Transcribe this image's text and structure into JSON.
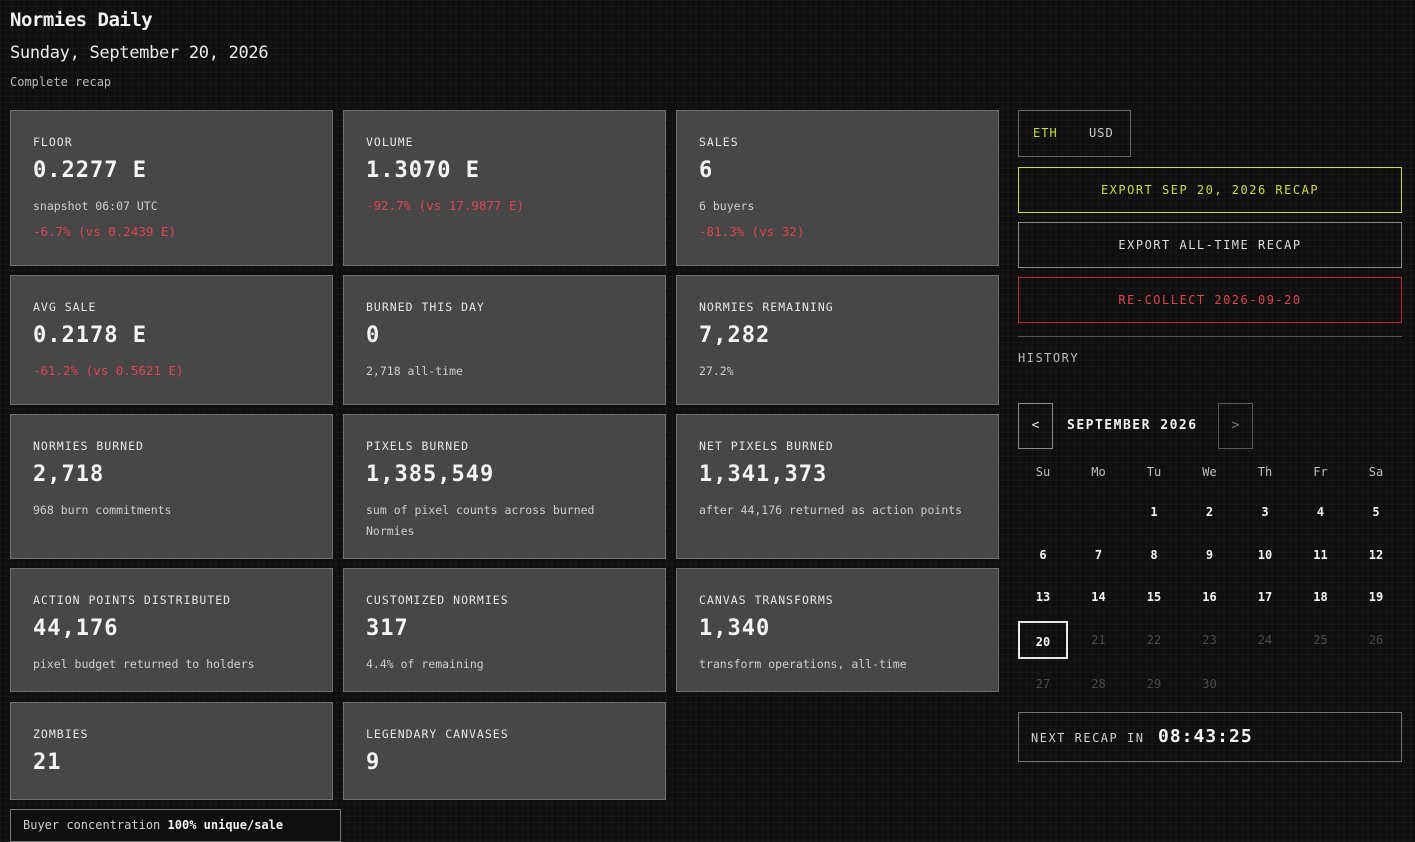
{
  "header": {
    "title": "Normies Daily",
    "date": "Sunday, September 20, 2026",
    "subtitle": "Complete recap"
  },
  "cards": {
    "floor": {
      "label": "FLOOR",
      "value": "0.2277 E",
      "sub": "snapshot 06:07 UTC",
      "delta": "-6.7% (vs 0.2439 E)"
    },
    "volume": {
      "label": "VOLUME",
      "value": "1.3070 E",
      "delta": "-92.7% (vs 17.9877 E)"
    },
    "sales": {
      "label": "SALES",
      "value": "6",
      "sub": "6 buyers",
      "delta": "-81.3% (vs 32)"
    },
    "avg_sale": {
      "label": "AVG SALE",
      "value": "0.2178 E",
      "delta": "-61.2% (vs 0.5621 E)"
    },
    "burned_day": {
      "label": "BURNED THIS DAY",
      "value": "0",
      "sub": "2,718 all-time"
    },
    "remaining": {
      "label": "NORMIES REMAINING",
      "value": "7,282",
      "sub": "27.2%"
    },
    "normies_burned": {
      "label": "NORMIES BURNED",
      "value": "2,718",
      "sub": "968 burn commitments"
    },
    "pixels_burned": {
      "label": "PIXELS BURNED",
      "value": "1,385,549",
      "sub": "sum of pixel counts across burned Normies"
    },
    "net_pixels": {
      "label": "NET PIXELS BURNED",
      "value": "1,341,373",
      "sub": "after 44,176 returned as action points"
    },
    "action_points": {
      "label": "ACTION POINTS DISTRIBUTED",
      "value": "44,176",
      "sub": "pixel budget returned to holders"
    },
    "customized": {
      "label": "CUSTOMIZED NORMIES",
      "value": "317",
      "sub": "4.4% of remaining"
    },
    "transforms": {
      "label": "CANVAS TRANSFORMS",
      "value": "1,340",
      "sub": "transform operations, all-time"
    },
    "zombies": {
      "label": "ZOMBIES",
      "value": "21"
    },
    "legendary": {
      "label": "LEGENDARY CANVASES",
      "value": "9"
    }
  },
  "buyer_concentration": {
    "label": "Buyer concentration",
    "value": "100% unique/sale"
  },
  "currency_toggle": {
    "eth": "ETH",
    "usd": "USD",
    "selected": "ETH"
  },
  "buttons": {
    "export_day": "EXPORT SEP 20, 2026 RECAP",
    "export_all": "EXPORT ALL-TIME RECAP",
    "recollect": "RE-COLLECT 2026-09-20"
  },
  "history": {
    "label": "HISTORY",
    "prev": "<",
    "next": ">",
    "month": "SEPTEMBER 2026",
    "weekdays": [
      "Su",
      "Mo",
      "Tu",
      "We",
      "Th",
      "Fr",
      "Sa"
    ],
    "first_weekday_index": 2,
    "days_in_month": 30,
    "selected_day": 20
  },
  "countdown": {
    "label": "NEXT RECAP IN",
    "time": "08:43:25"
  },
  "colors": {
    "accent": "#cddc39",
    "negative": "#e0444f",
    "danger_border": "#c62832",
    "card_bg": "#474748"
  }
}
